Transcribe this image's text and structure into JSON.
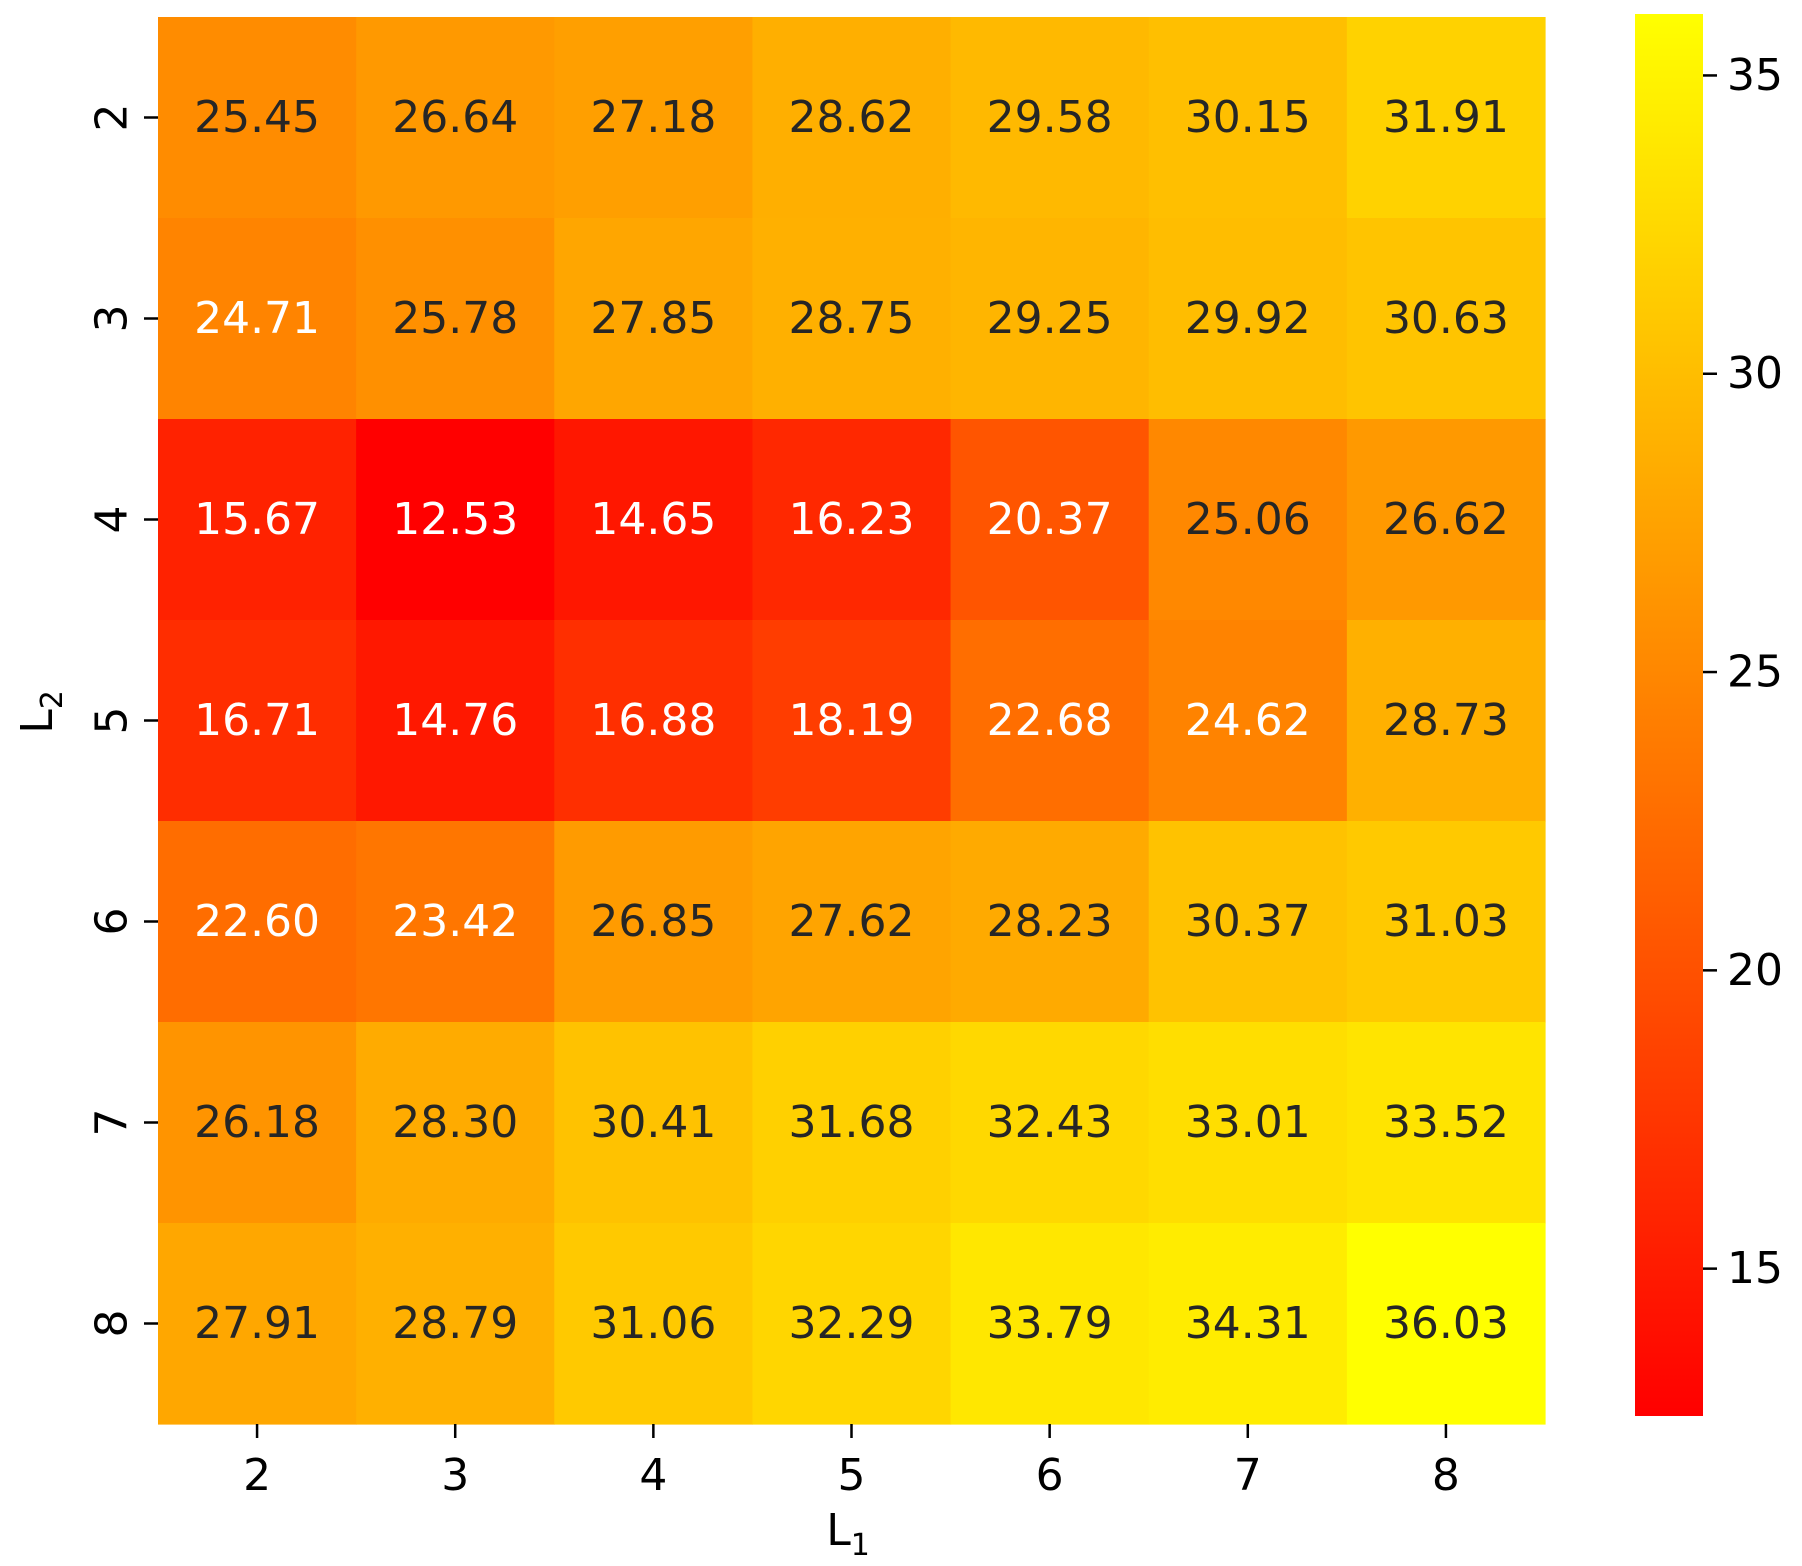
{
  "chart_data": {
    "type": "heatmap",
    "xlabel": "L",
    "xlabel_subscript": "1",
    "ylabel": "L",
    "ylabel_subscript": "2",
    "x_categories": [
      "2",
      "3",
      "4",
      "5",
      "6",
      "7",
      "8"
    ],
    "y_categories": [
      "2",
      "3",
      "4",
      "5",
      "6",
      "7",
      "8"
    ],
    "values": [
      [
        "25.45",
        "26.64",
        "27.18",
        "28.62",
        "29.58",
        "30.15",
        "31.91"
      ],
      [
        "24.71",
        "25.78",
        "27.85",
        "28.75",
        "29.25",
        "29.92",
        "30.63"
      ],
      [
        "15.67",
        "12.53",
        "14.65",
        "16.23",
        "20.37",
        "25.06",
        "26.62"
      ],
      [
        "16.71",
        "14.76",
        "16.88",
        "18.19",
        "22.68",
        "24.62",
        "28.73"
      ],
      [
        "22.60",
        "23.42",
        "26.85",
        "27.62",
        "28.23",
        "30.37",
        "31.03"
      ],
      [
        "26.18",
        "28.30",
        "30.41",
        "31.68",
        "32.43",
        "33.01",
        "33.52"
      ],
      [
        "27.91",
        "28.79",
        "31.06",
        "32.29",
        "33.79",
        "34.31",
        "36.03"
      ]
    ],
    "colormap": "autumn",
    "colorbar": {
      "min": 12.53,
      "max": 36.03,
      "ticks": [
        "15",
        "20",
        "25",
        "30",
        "35"
      ]
    },
    "colors": {
      "low": "#ff0000",
      "high": "#ffff00",
      "dark_text": "#262626",
      "light_text": "#ffffff"
    }
  }
}
